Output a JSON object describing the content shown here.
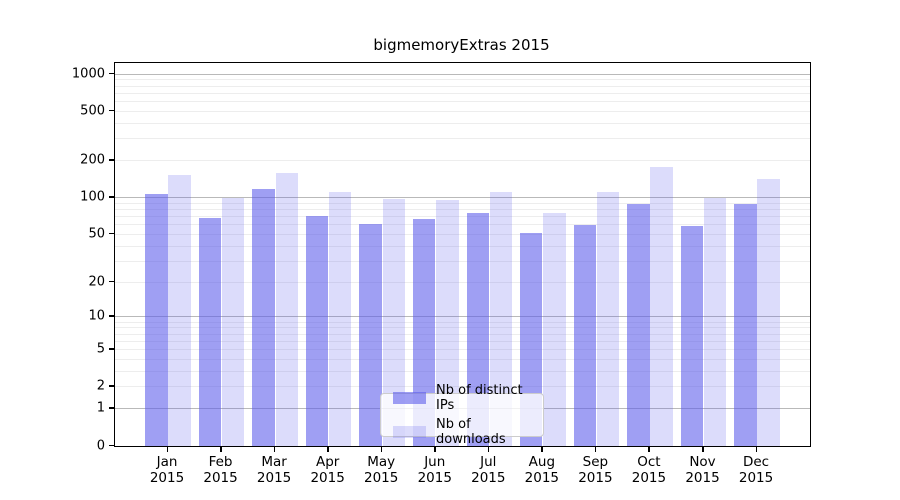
{
  "chart_data": {
    "type": "bar",
    "title": "bigmemoryExtras 2015",
    "categories": [
      "Jan",
      "Feb",
      "Mar",
      "Apr",
      "May",
      "Jun",
      "Jul",
      "Aug",
      "Sep",
      "Oct",
      "Nov",
      "Dec"
    ],
    "x_axis": {
      "year_label": "2015"
    },
    "series": [
      {
        "name": "Nb of distinct IPs",
        "color": "rgba(90,90,235,0.58)",
        "values": [
          108,
          68,
          117,
          71,
          61,
          67,
          75,
          51,
          60,
          89,
          59,
          88
        ]
      },
      {
        "name": "Nb of downloads",
        "color": "rgba(90,90,235,0.21)",
        "values": [
          152,
          100,
          160,
          112,
          97,
          95,
          112,
          75,
          111,
          177,
          100,
          143
        ]
      }
    ],
    "y_axis": {
      "scale": "log1p",
      "tick_values": [
        0,
        1,
        2,
        5,
        10,
        20,
        50,
        100,
        200,
        500,
        1000
      ],
      "tick_labels": [
        "0",
        "1",
        "2",
        "5",
        "10",
        "20",
        "50",
        "100",
        "200",
        "500",
        "1000"
      ],
      "major_gridlines": [
        1,
        10,
        100,
        1000
      ],
      "minor_gridlines": [
        2,
        3,
        4,
        5,
        6,
        7,
        8,
        9,
        20,
        30,
        40,
        50,
        60,
        70,
        80,
        90,
        200,
        300,
        400,
        500,
        600,
        700,
        800,
        900
      ],
      "ylim": [
        0,
        1220
      ]
    },
    "legend": {
      "position": "lower center",
      "entries": [
        "Nb of distinct IPs",
        "Nb of downloads"
      ]
    },
    "grid": true,
    "colors": {
      "major_gridline": "#b9b9b9",
      "minor_gridline": "#ededed",
      "spine": "#000000",
      "background": "#ffffff"
    }
  }
}
